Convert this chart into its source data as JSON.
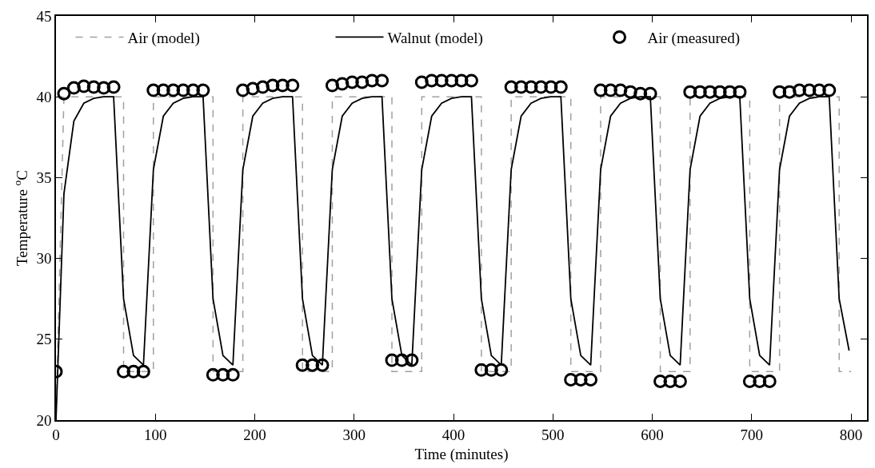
{
  "chart_data": {
    "type": "line",
    "xlabel": "Time (minutes)",
    "ylabel": "Temperature $^{o}$C",
    "xlim": [
      0,
      816
    ],
    "xticks": [
      0,
      100,
      200,
      300,
      400,
      500,
      600,
      700,
      800
    ],
    "ylim": [
      20,
      45
    ],
    "yticks": [
      20,
      25,
      30,
      35,
      40,
      45
    ],
    "legend": "top",
    "series": [
      {
        "name": "Air (model)",
        "type": "line",
        "line_style": "dashed",
        "marker": "none",
        "color": "#a0a0a0",
        "x": [
          0,
          8,
          68,
          68,
          98,
          98,
          158,
          158,
          188,
          188,
          248,
          248,
          278,
          278,
          338,
          338,
          368,
          368,
          428,
          428,
          458,
          458,
          518,
          518,
          548,
          548,
          608,
          608,
          638,
          638,
          698,
          698,
          728,
          728,
          788,
          788,
          800
        ],
        "values": [
          20,
          40,
          40,
          23,
          23,
          40,
          40,
          23,
          23,
          40,
          40,
          23,
          23,
          40,
          40,
          23,
          23,
          40,
          40,
          23,
          23,
          40,
          40,
          23,
          23,
          40,
          40,
          23,
          23,
          40,
          40,
          23,
          23,
          40,
          40,
          23,
          23
        ]
      },
      {
        "name": "Walnut (model)",
        "type": "line",
        "line_style": "solid",
        "marker": "none",
        "color": "#000000",
        "x": [
          0,
          8,
          18,
          28,
          38,
          48,
          58,
          68,
          78,
          88,
          98,
          108,
          118,
          128,
          138,
          148,
          158,
          168,
          178,
          188,
          198,
          208,
          218,
          228,
          238,
          248,
          258,
          268,
          278,
          288,
          298,
          308,
          318,
          328,
          338,
          348,
          358,
          368,
          378,
          388,
          398,
          408,
          418,
          428,
          438,
          448,
          458,
          468,
          478,
          488,
          498,
          508,
          518,
          528,
          538,
          548,
          558,
          568,
          578,
          588,
          598,
          608,
          618,
          628,
          638,
          648,
          658,
          668,
          678,
          688,
          698,
          708,
          718,
          728,
          738,
          748,
          758,
          768,
          778,
          788,
          798
        ],
        "values": [
          20,
          34,
          38.5,
          39.6,
          39.9,
          40,
          40,
          27.5,
          24.0,
          23.4,
          35.5,
          38.8,
          39.6,
          39.9,
          40,
          40,
          27.5,
          24.0,
          23.4,
          35.5,
          38.8,
          39.6,
          39.9,
          40,
          40,
          27.5,
          24.0,
          23.4,
          35.5,
          38.8,
          39.6,
          39.9,
          40,
          40,
          27.5,
          24.0,
          23.4,
          35.5,
          38.8,
          39.6,
          39.9,
          40,
          40,
          27.5,
          24.0,
          23.4,
          35.5,
          38.8,
          39.6,
          39.9,
          40,
          40,
          27.5,
          24.0,
          23.4,
          35.5,
          38.8,
          39.6,
          39.9,
          40,
          40,
          27.5,
          24.0,
          23.4,
          35.5,
          38.8,
          39.6,
          39.9,
          40,
          40,
          27.5,
          24.0,
          23.4,
          35.5,
          38.8,
          39.6,
          39.9,
          40,
          40,
          27.5,
          24.3
        ]
      },
      {
        "name": "Air (measured)",
        "type": "scatter",
        "marker": "circle",
        "color": "#000000",
        "x": [
          0,
          8,
          18,
          28,
          38,
          48,
          58,
          68,
          78,
          88,
          98,
          108,
          118,
          128,
          138,
          148,
          158,
          168,
          178,
          188,
          198,
          208,
          218,
          228,
          238,
          248,
          258,
          268,
          278,
          288,
          298,
          308,
          318,
          328,
          338,
          348,
          358,
          368,
          378,
          388,
          398,
          408,
          418,
          428,
          438,
          448,
          458,
          468,
          478,
          488,
          498,
          508,
          518,
          528,
          538,
          548,
          558,
          568,
          578,
          588,
          598,
          608,
          618,
          628,
          638,
          648,
          658,
          668,
          678,
          688,
          698,
          708,
          718,
          728,
          738,
          748,
          758,
          768,
          778
        ],
        "values": [
          23.0,
          40.2,
          40.55,
          40.65,
          40.6,
          40.55,
          40.6,
          23.0,
          23.0,
          23.0,
          40.4,
          40.4,
          40.4,
          40.4,
          40.4,
          40.4,
          22.8,
          22.8,
          22.8,
          40.4,
          40.5,
          40.6,
          40.7,
          40.7,
          40.7,
          23.4,
          23.4,
          23.4,
          40.7,
          40.8,
          40.9,
          40.9,
          41.0,
          41.0,
          23.7,
          23.7,
          23.7,
          40.9,
          41.0,
          41.0,
          41.0,
          41.0,
          41.0,
          23.1,
          23.1,
          23.1,
          40.6,
          40.6,
          40.6,
          40.6,
          40.6,
          40.6,
          22.5,
          22.5,
          22.5,
          40.4,
          40.4,
          40.4,
          40.3,
          40.2,
          40.2,
          22.4,
          22.4,
          22.4,
          40.3,
          40.3,
          40.3,
          40.3,
          40.3,
          40.3,
          22.4,
          22.4,
          22.4,
          40.3,
          40.3,
          40.4,
          40.4,
          40.4,
          40.4
        ]
      }
    ]
  }
}
